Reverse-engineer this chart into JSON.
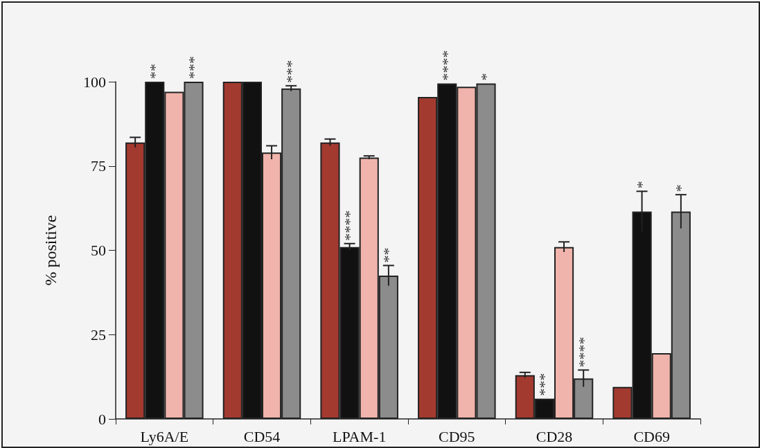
{
  "chart_data": {
    "type": "bar",
    "ylabel": "% positive",
    "categories": [
      "Ly6A/E",
      "CD54",
      "LPAM-1",
      "CD95",
      "CD28",
      "CD69"
    ],
    "series": [
      {
        "color": "#a33a30",
        "values": [
          82,
          100,
          82,
          95.5,
          13,
          9.5
        ],
        "errors": [
          1.5,
          null,
          1,
          null,
          0.8,
          null
        ]
      },
      {
        "color": "#111111",
        "values": [
          100,
          100,
          51,
          99.5,
          6,
          61.5
        ],
        "errors": [
          null,
          null,
          1,
          null,
          null,
          6
        ],
        "value_labels": [
          "**",
          null,
          "****",
          "****",
          "***",
          "*"
        ]
      },
      {
        "color": "#f0b4ac",
        "values": [
          97,
          79,
          77.5,
          98.5,
          51,
          19.5
        ],
        "errors": [
          null,
          2,
          0.5,
          null,
          1.5,
          null
        ]
      },
      {
        "color": "#8c8c8c",
        "values": [
          100,
          98,
          42.5,
          99.5,
          12,
          61.5
        ],
        "errors": [
          null,
          0.8,
          3,
          null,
          2.5,
          5
        ],
        "value_labels": [
          "***",
          "***",
          "**",
          "*",
          "****",
          "*"
        ]
      }
    ],
    "ylim": [
      0,
      100
    ],
    "yticks": [
      0,
      25,
      50,
      75,
      100
    ],
    "grid": false
  }
}
